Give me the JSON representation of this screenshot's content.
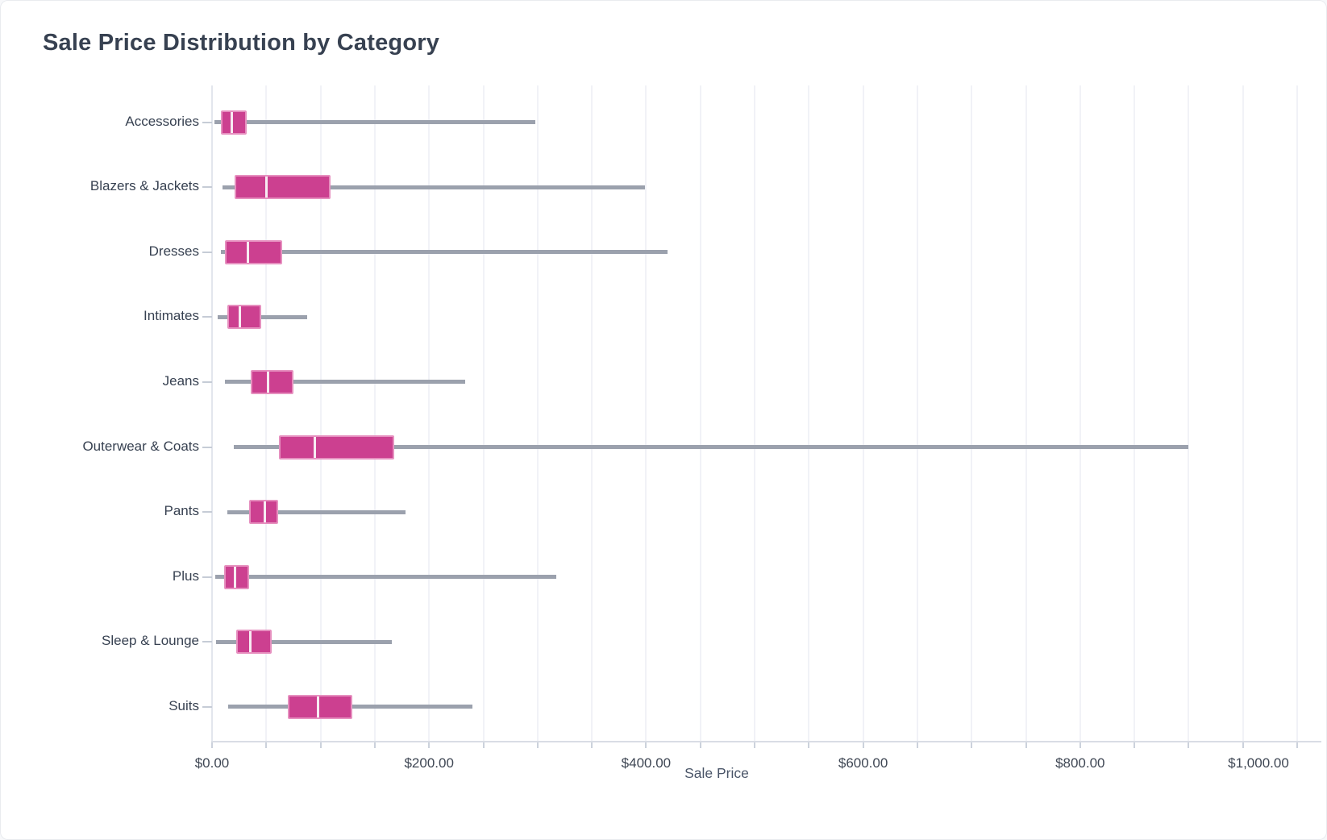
{
  "card": {
    "title": "Sale Price Distribution by Category"
  },
  "chart_data": {
    "type": "boxplot",
    "orientation": "horizontal",
    "title": "Sale Price Distribution by Category",
    "xlabel": "Sale Price",
    "ylabel": "",
    "xlim": [
      0,
      1020
    ],
    "grid": "vertical minor gridlines every 50, labels every 200",
    "minor_tick_step": 50,
    "legend": "none",
    "x_ticks": [
      {
        "value": 0,
        "label": "$0.00"
      },
      {
        "value": 200,
        "label": "$200.00"
      },
      {
        "value": 400,
        "label": "$400.00"
      },
      {
        "value": 600,
        "label": "$600.00"
      },
      {
        "value": 800,
        "label": "$800.00"
      },
      {
        "value": 1000,
        "label": "$1,000.00"
      }
    ],
    "categories": [
      "Accessories",
      "Blazers & Jackets",
      "Dresses",
      "Intimates",
      "Jeans",
      "Outerwear & Coats",
      "Pants",
      "Plus",
      "Sleep & Lounge",
      "Suits"
    ],
    "series": [
      {
        "name": "Sale Price",
        "unit": "USD",
        "values": [
          {
            "category": "Accessories",
            "min": 2,
            "q1": 8,
            "median": 18,
            "q3": 32,
            "max": 298
          },
          {
            "category": "Blazers & Jackets",
            "min": 10,
            "q1": 21,
            "median": 50,
            "q3": 109,
            "max": 399
          },
          {
            "category": "Dresses",
            "min": 8,
            "q1": 12,
            "median": 33,
            "q3": 65,
            "max": 420
          },
          {
            "category": "Intimates",
            "min": 5,
            "q1": 14,
            "median": 26,
            "q3": 45,
            "max": 88
          },
          {
            "category": "Jeans",
            "min": 12,
            "q1": 36,
            "median": 52,
            "q3": 75,
            "max": 233
          },
          {
            "category": "Outerwear & Coats",
            "min": 20,
            "q1": 62,
            "median": 95,
            "q3": 168,
            "max": 900
          },
          {
            "category": "Pants",
            "min": 14,
            "q1": 34,
            "median": 49,
            "q3": 61,
            "max": 178
          },
          {
            "category": "Plus",
            "min": 3,
            "q1": 11,
            "median": 21,
            "q3": 34,
            "max": 317
          },
          {
            "category": "Sleep & Lounge",
            "min": 4,
            "q1": 22,
            "median": 35,
            "q3": 55,
            "max": 166
          },
          {
            "category": "Suits",
            "min": 15,
            "q1": 70,
            "median": 98,
            "q3": 129,
            "max": 240
          }
        ]
      }
    ]
  },
  "colors": {
    "box_fill": "#cc4090",
    "box_border": "#e690bf",
    "median_line": "#f7ebf2",
    "whisker": "#9ba1ad",
    "gridline": "#f1f2f7",
    "zero_line": "#e3e6ed",
    "axis_line": "#d9dde5",
    "tick_mark": "#ccd2dc",
    "y_tick_mark": "#c6ccd6",
    "title_text": "#374151",
    "tick_text": "#3f4754",
    "axis_title_text": "#4a5568",
    "card_border": "#e9ebef",
    "background": "#ffffff"
  }
}
